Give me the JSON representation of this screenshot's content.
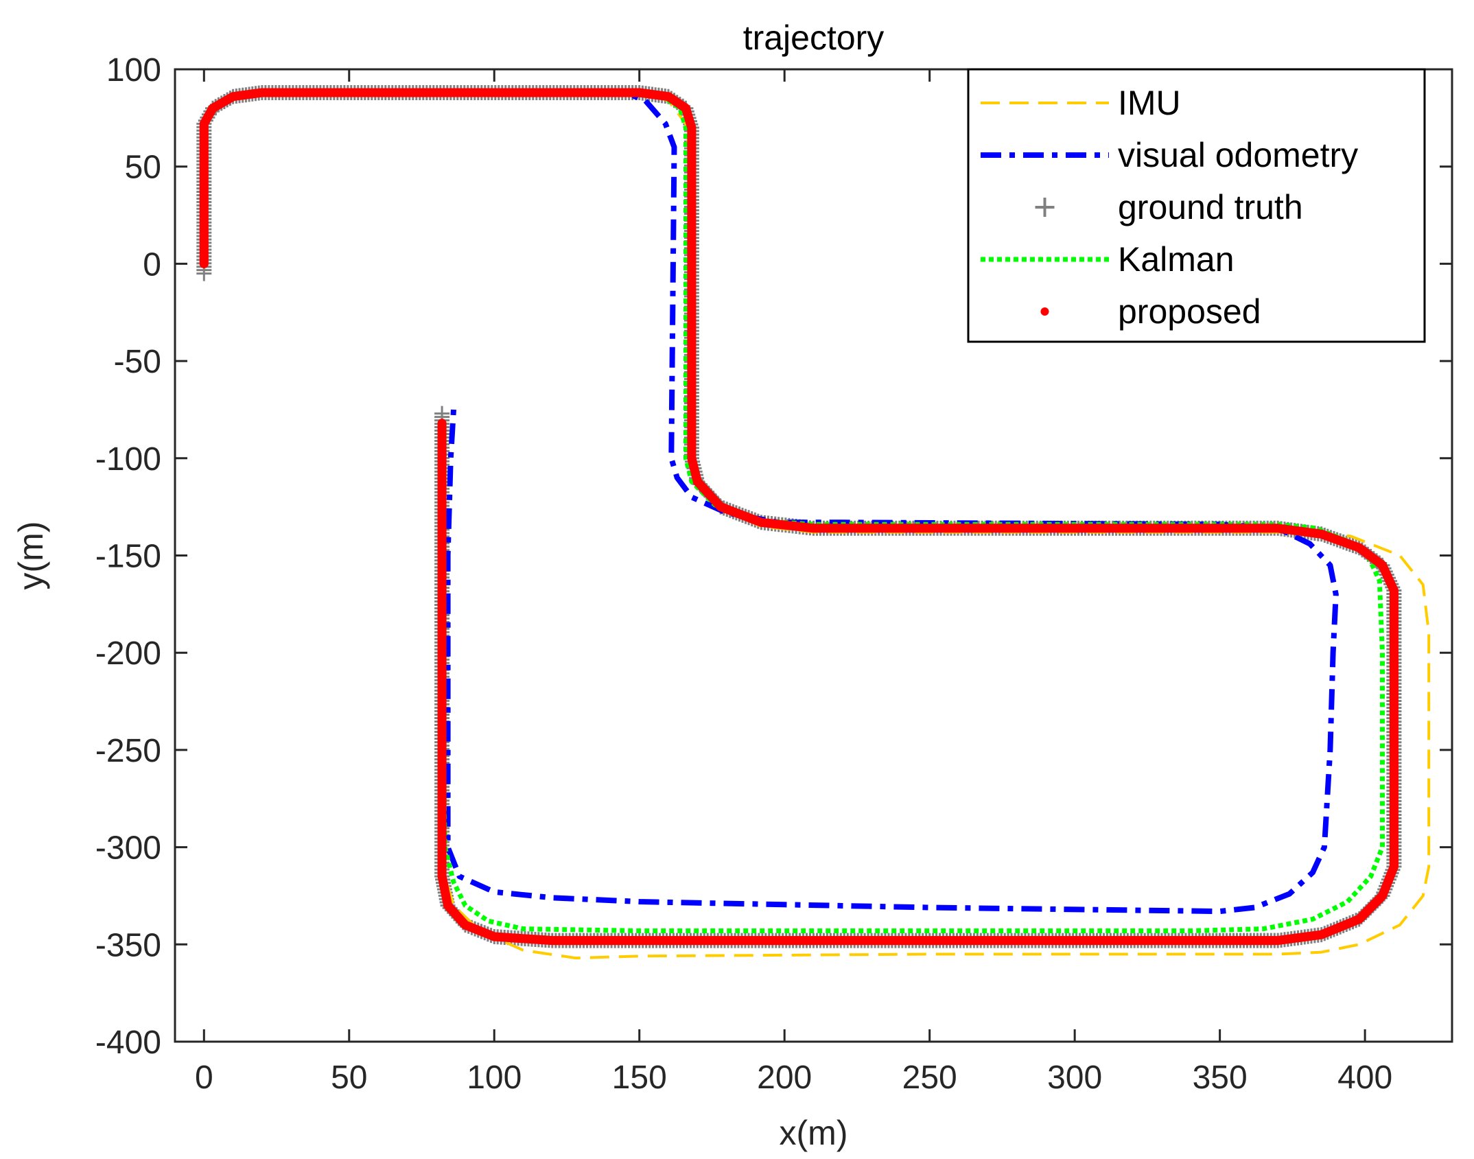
{
  "chart_data": {
    "type": "line",
    "title": "trajectory",
    "xlabel": "x(m)",
    "ylabel": "y(m)",
    "xlim": [
      -10,
      430
    ],
    "ylim": [
      -400,
      100
    ],
    "xticks": [
      0,
      50,
      100,
      150,
      200,
      250,
      300,
      350,
      400
    ],
    "yticks": [
      100,
      50,
      0,
      -50,
      -100,
      -150,
      -200,
      -250,
      -300,
      -350,
      -400
    ],
    "grid": false,
    "legend_position": "top-right",
    "colors": {
      "imu": "#FFCC00",
      "visual_odometry": "#0000FF",
      "ground_truth": "#808080",
      "kalman": "#00FF00",
      "proposed": "#FF0000",
      "axis": "#262626"
    },
    "series": [
      {
        "name": "IMU",
        "style": "dashed",
        "points": [
          [
            0,
            0
          ],
          [
            0,
            72
          ],
          [
            3,
            80
          ],
          [
            10,
            86
          ],
          [
            20,
            88
          ],
          [
            150,
            88
          ],
          [
            160,
            84
          ],
          [
            166,
            72
          ],
          [
            167,
            60
          ],
          [
            168,
            -100
          ],
          [
            170,
            -112
          ],
          [
            178,
            -126
          ],
          [
            192,
            -135
          ],
          [
            210,
            -138
          ],
          [
            370,
            -138
          ],
          [
            395,
            -140
          ],
          [
            412,
            -150
          ],
          [
            420,
            -165
          ],
          [
            422,
            -190
          ],
          [
            422,
            -310
          ],
          [
            420,
            -325
          ],
          [
            412,
            -340
          ],
          [
            398,
            -350
          ],
          [
            385,
            -354
          ],
          [
            370,
            -355
          ],
          [
            250,
            -355
          ],
          [
            150,
            -356
          ],
          [
            128,
            -357
          ],
          [
            110,
            -353
          ],
          [
            95,
            -343
          ],
          [
            86,
            -330
          ],
          [
            83,
            -315
          ],
          [
            82,
            -200
          ],
          [
            82,
            -80
          ]
        ]
      },
      {
        "name": "visual odometry",
        "style": "dashdot",
        "points": [
          [
            0,
            0
          ],
          [
            0,
            72
          ],
          [
            3,
            80
          ],
          [
            10,
            86
          ],
          [
            20,
            88
          ],
          [
            145,
            88
          ],
          [
            152,
            84
          ],
          [
            159,
            72
          ],
          [
            162,
            60
          ],
          [
            161,
            -100
          ],
          [
            163,
            -110
          ],
          [
            168,
            -120
          ],
          [
            180,
            -128
          ],
          [
            198,
            -133
          ],
          [
            220,
            -133
          ],
          [
            350,
            -134
          ],
          [
            370,
            -136
          ],
          [
            381,
            -144
          ],
          [
            388,
            -155
          ],
          [
            390,
            -170
          ],
          [
            389,
            -200
          ],
          [
            388,
            -250
          ],
          [
            386,
            -300
          ],
          [
            382,
            -313
          ],
          [
            374,
            -324
          ],
          [
            362,
            -331
          ],
          [
            350,
            -333
          ],
          [
            250,
            -331
          ],
          [
            150,
            -328
          ],
          [
            120,
            -326
          ],
          [
            100,
            -323
          ],
          [
            88,
            -315
          ],
          [
            84,
            -300
          ],
          [
            84,
            -250
          ],
          [
            84,
            -150
          ],
          [
            85,
            -100
          ],
          [
            86,
            -75
          ]
        ]
      },
      {
        "name": "ground truth",
        "style": "plus-markers",
        "points": [
          [
            0,
            -5
          ],
          [
            0,
            72
          ],
          [
            3,
            80
          ],
          [
            10,
            86
          ],
          [
            20,
            88
          ],
          [
            150,
            88
          ],
          [
            160,
            86
          ],
          [
            166,
            80
          ],
          [
            168,
            70
          ],
          [
            168,
            -100
          ],
          [
            170,
            -112
          ],
          [
            178,
            -125
          ],
          [
            192,
            -133
          ],
          [
            210,
            -136
          ],
          [
            370,
            -136
          ],
          [
            385,
            -139
          ],
          [
            398,
            -146
          ],
          [
            406,
            -155
          ],
          [
            410,
            -168
          ],
          [
            410,
            -310
          ],
          [
            406,
            -325
          ],
          [
            398,
            -337
          ],
          [
            385,
            -345
          ],
          [
            370,
            -348
          ],
          [
            250,
            -348
          ],
          [
            150,
            -348
          ],
          [
            120,
            -348
          ],
          [
            100,
            -346
          ],
          [
            90,
            -340
          ],
          [
            84,
            -330
          ],
          [
            82,
            -315
          ],
          [
            82,
            -200
          ],
          [
            82,
            -77
          ]
        ]
      },
      {
        "name": "Kalman",
        "style": "dotted",
        "points": [
          [
            0,
            0
          ],
          [
            0,
            72
          ],
          [
            3,
            80
          ],
          [
            10,
            86
          ],
          [
            20,
            88
          ],
          [
            150,
            88
          ],
          [
            158,
            86
          ],
          [
            164,
            80
          ],
          [
            166,
            70
          ],
          [
            166,
            -100
          ],
          [
            168,
            -112
          ],
          [
            176,
            -124
          ],
          [
            190,
            -132
          ],
          [
            210,
            -134
          ],
          [
            370,
            -134
          ],
          [
            383,
            -136
          ],
          [
            393,
            -142
          ],
          [
            401,
            -150
          ],
          [
            405,
            -163
          ],
          [
            406,
            -200
          ],
          [
            406,
            -250
          ],
          [
            406,
            -300
          ],
          [
            402,
            -315
          ],
          [
            394,
            -328
          ],
          [
            382,
            -337
          ],
          [
            365,
            -342
          ],
          [
            340,
            -343
          ],
          [
            250,
            -343
          ],
          [
            150,
            -343
          ],
          [
            110,
            -342
          ],
          [
            98,
            -338
          ],
          [
            90,
            -330
          ],
          [
            86,
            -318
          ],
          [
            83,
            -300
          ],
          [
            82,
            -200
          ],
          [
            82,
            -78
          ]
        ]
      },
      {
        "name": "proposed",
        "style": "dot-markers",
        "points": [
          [
            0,
            0
          ],
          [
            0,
            72
          ],
          [
            3,
            80
          ],
          [
            10,
            86
          ],
          [
            20,
            88
          ],
          [
            150,
            88
          ],
          [
            160,
            86
          ],
          [
            166,
            80
          ],
          [
            168,
            70
          ],
          [
            168,
            -100
          ],
          [
            170,
            -112
          ],
          [
            178,
            -125
          ],
          [
            192,
            -133
          ],
          [
            210,
            -136
          ],
          [
            370,
            -136
          ],
          [
            385,
            -139
          ],
          [
            398,
            -146
          ],
          [
            406,
            -155
          ],
          [
            410,
            -168
          ],
          [
            410,
            -310
          ],
          [
            406,
            -325
          ],
          [
            398,
            -337
          ],
          [
            385,
            -345
          ],
          [
            370,
            -348
          ],
          [
            250,
            -348
          ],
          [
            150,
            -348
          ],
          [
            120,
            -348
          ],
          [
            100,
            -346
          ],
          [
            90,
            -340
          ],
          [
            84,
            -330
          ],
          [
            82,
            -315
          ],
          [
            82,
            -200
          ],
          [
            82,
            -82
          ]
        ]
      }
    ]
  }
}
